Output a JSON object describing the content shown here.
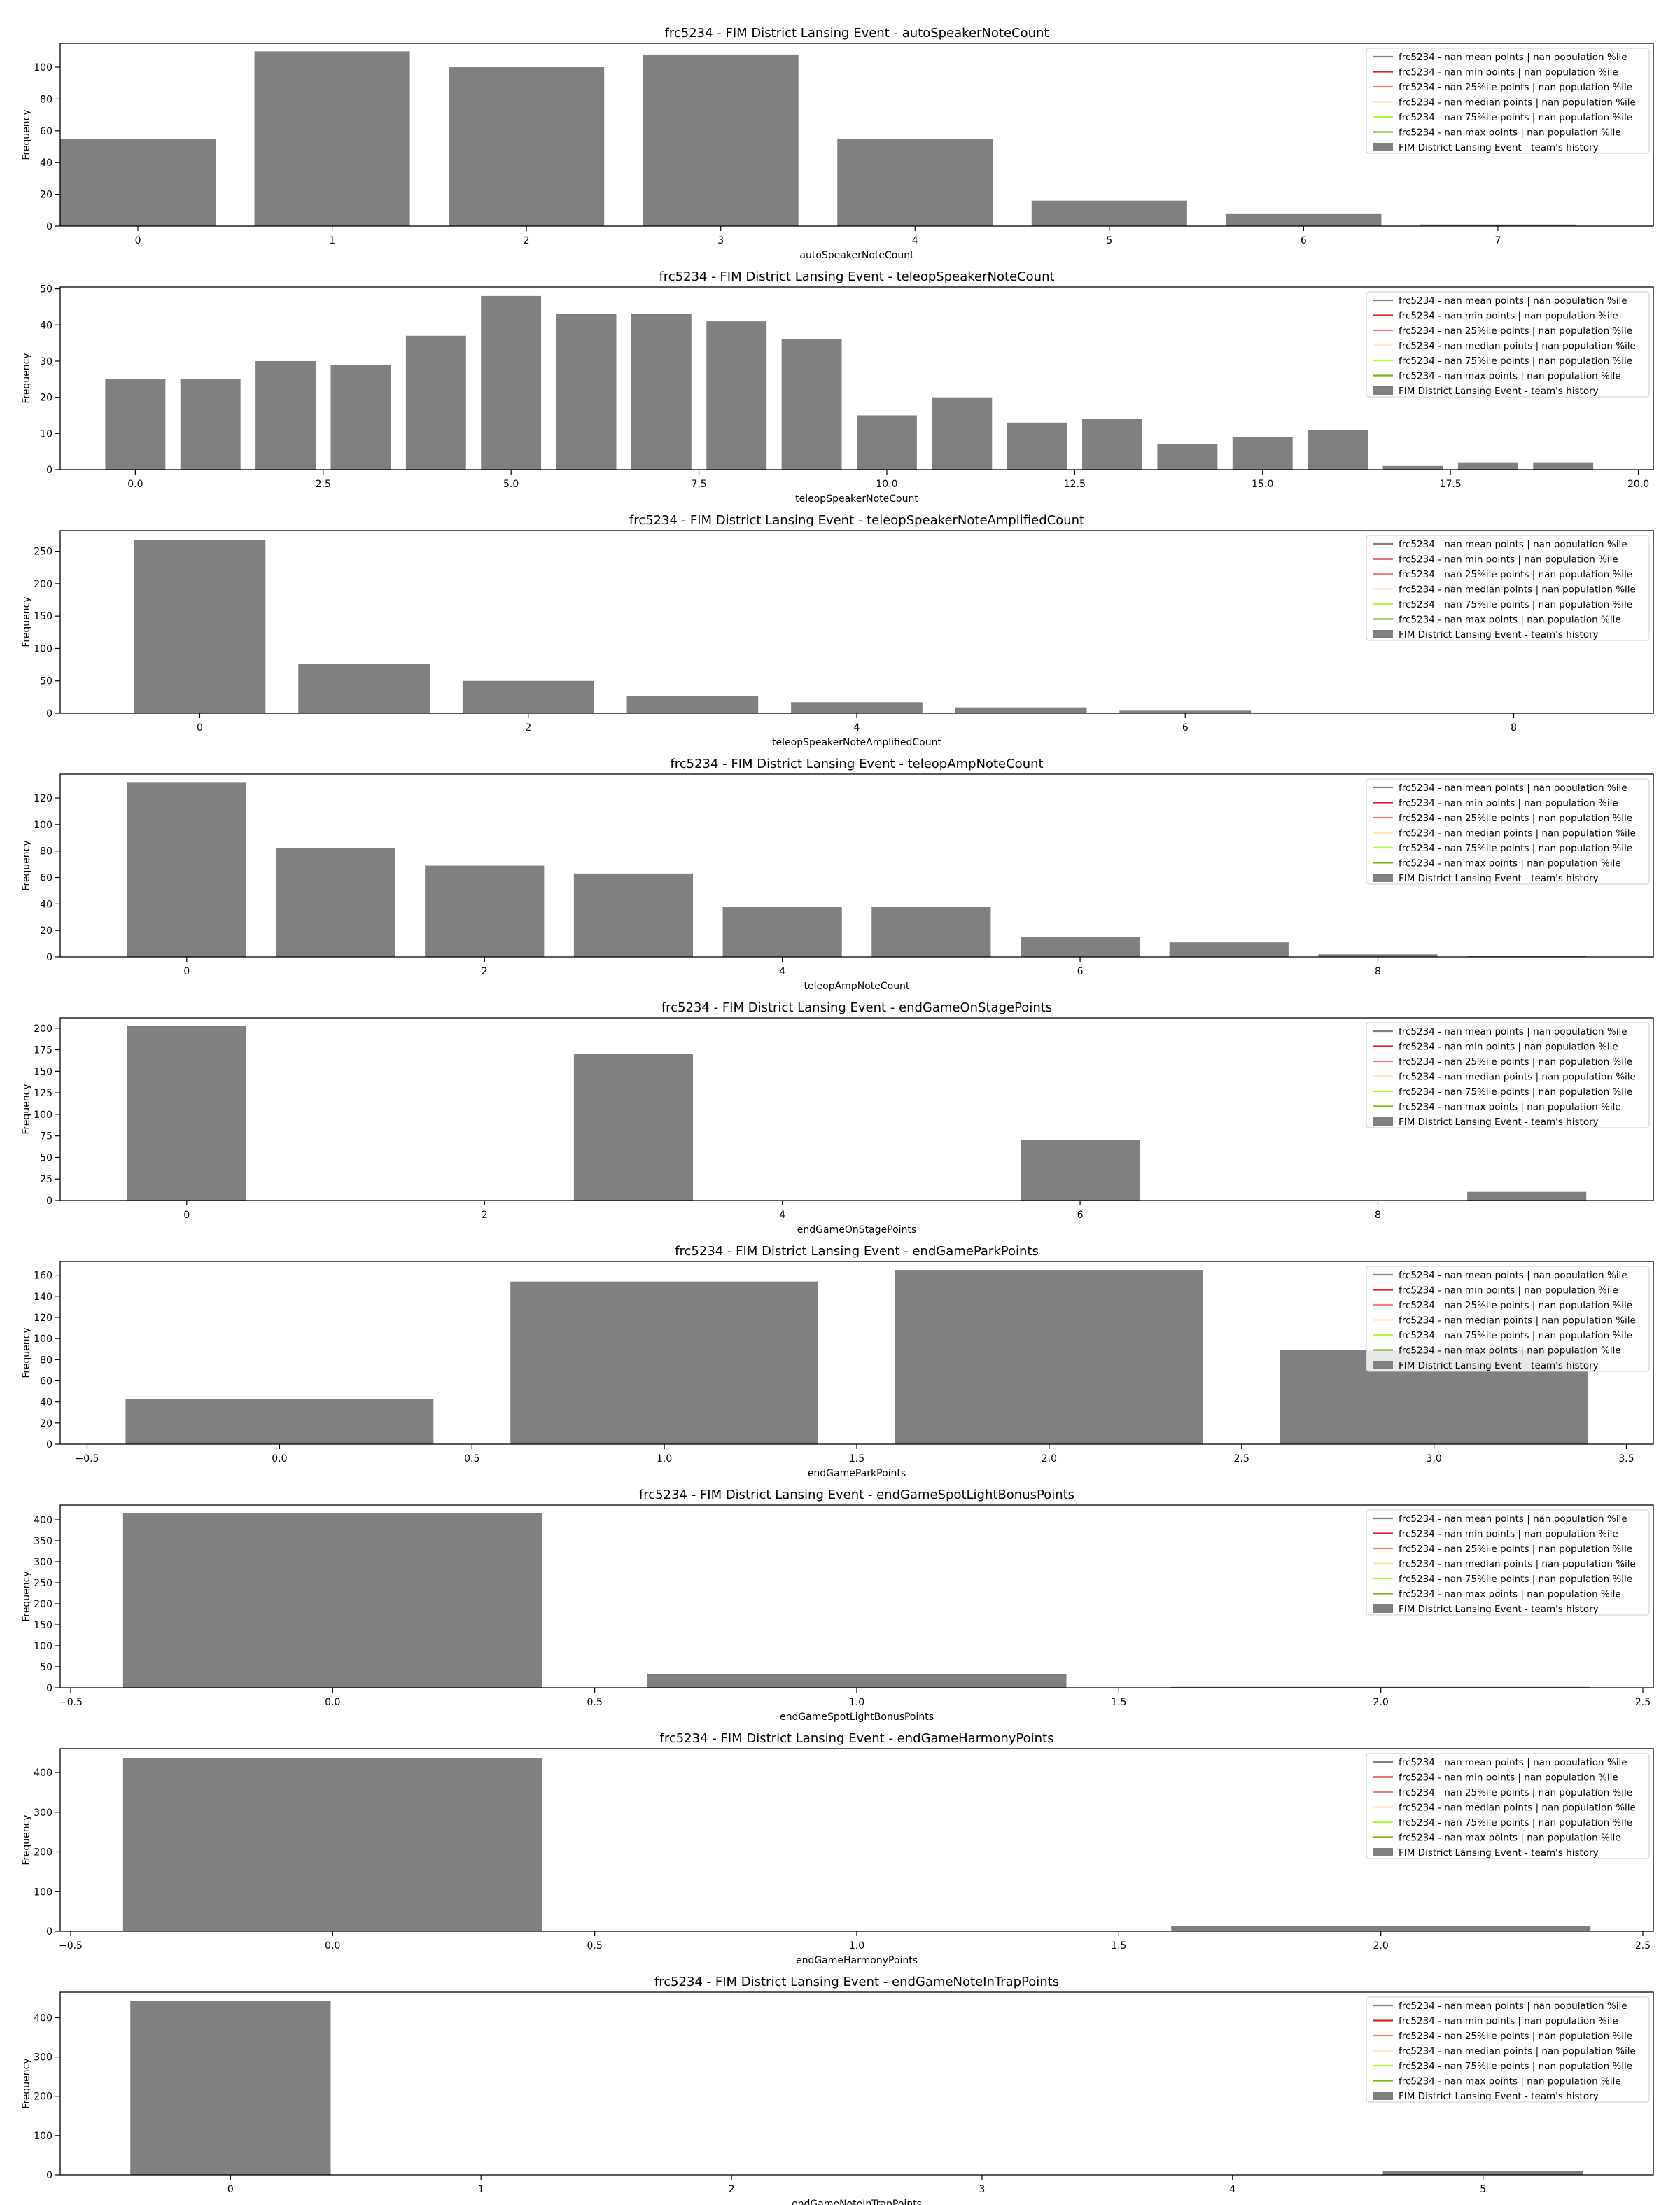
{
  "legend_entries": [
    {
      "label": "frc5234 - nan mean points | nan population %ile",
      "color": "#808080",
      "kind": "line"
    },
    {
      "label": "frc5234 - nan min points | nan population %ile",
      "color": "#d62728",
      "kind": "line"
    },
    {
      "label": "frc5234 - nan 25%ile points | nan population %ile",
      "color": "#f08080",
      "kind": "line"
    },
    {
      "label": "frc5234 - nan median points | nan population %ile",
      "color": "#ffe4b5",
      "kind": "line"
    },
    {
      "label": "frc5234 - nan 75%ile points | nan population %ile",
      "color": "#adff2f",
      "kind": "line"
    },
    {
      "label": "frc5234 - nan max points | nan population %ile",
      "color": "#7cb518",
      "kind": "line"
    },
    {
      "label": "FIM District Lansing Event - team's history",
      "color": "#808080",
      "kind": "bar"
    }
  ],
  "bar_color": "#808080",
  "chart_data": [
    {
      "type": "bar",
      "title": "frc5234 - FIM District Lansing Event - autoSpeakerNoteCount",
      "xlabel": "autoSpeakerNoteCount",
      "ylabel": "Frequency",
      "legend_position": "upper right",
      "grid": false,
      "xlim": [
        -0.4,
        7.8
      ],
      "ylim": [
        0,
        115
      ],
      "xticks": [
        {
          "v": 0,
          "label": "0"
        },
        {
          "v": 1,
          "label": "1"
        },
        {
          "v": 2,
          "label": "2"
        },
        {
          "v": 3,
          "label": "3"
        },
        {
          "v": 4,
          "label": "4"
        },
        {
          "v": 5,
          "label": "5"
        },
        {
          "v": 6,
          "label": "6"
        },
        {
          "v": 7,
          "label": "7"
        }
      ],
      "yticks": [
        {
          "v": 0,
          "label": "0"
        },
        {
          "v": 20,
          "label": "20"
        },
        {
          "v": 40,
          "label": "40"
        },
        {
          "v": 60,
          "label": "60"
        },
        {
          "v": 80,
          "label": "80"
        },
        {
          "v": 100,
          "label": "100"
        }
      ],
      "bars": [
        {
          "x0": -0.4,
          "x1": 0.4,
          "value": 55
        },
        {
          "x0": 0.6,
          "x1": 1.4,
          "value": 110
        },
        {
          "x0": 1.6,
          "x1": 2.4,
          "value": 100
        },
        {
          "x0": 2.6,
          "x1": 3.4,
          "value": 108
        },
        {
          "x0": 3.6,
          "x1": 4.4,
          "value": 55
        },
        {
          "x0": 4.6,
          "x1": 5.4,
          "value": 16
        },
        {
          "x0": 5.6,
          "x1": 6.4,
          "value": 8
        },
        {
          "x0": 6.6,
          "x1": 7.4,
          "value": 1
        }
      ]
    },
    {
      "type": "bar",
      "title": "frc5234 - FIM District Lansing Event - teleopSpeakerNoteCount",
      "xlabel": "teleopSpeakerNoteCount",
      "ylabel": "Frequency",
      "legend_position": "upper right",
      "grid": false,
      "xlim": [
        -1.0,
        20.2
      ],
      "ylim": [
        0,
        50.5
      ],
      "xticks": [
        {
          "v": 0,
          "label": "0.0"
        },
        {
          "v": 2.5,
          "label": "2.5"
        },
        {
          "v": 5,
          "label": "5.0"
        },
        {
          "v": 7.5,
          "label": "7.5"
        },
        {
          "v": 10,
          "label": "10.0"
        },
        {
          "v": 12.5,
          "label": "12.5"
        },
        {
          "v": 15,
          "label": "15.0"
        },
        {
          "v": 17.5,
          "label": "17.5"
        },
        {
          "v": 20,
          "label": "20.0"
        }
      ],
      "yticks": [
        {
          "v": 0,
          "label": "0"
        },
        {
          "v": 10,
          "label": "10"
        },
        {
          "v": 20,
          "label": "20"
        },
        {
          "v": 30,
          "label": "30"
        },
        {
          "v": 40,
          "label": "40"
        },
        {
          "v": 50,
          "label": "50"
        }
      ],
      "bars": [
        {
          "x0": -0.4,
          "x1": 0.4,
          "value": 25
        },
        {
          "x0": 0.6,
          "x1": 1.4,
          "value": 25
        },
        {
          "x0": 1.6,
          "x1": 2.4,
          "value": 30
        },
        {
          "x0": 2.6,
          "x1": 3.4,
          "value": 29
        },
        {
          "x0": 3.6,
          "x1": 4.4,
          "value": 37
        },
        {
          "x0": 4.6,
          "x1": 5.4,
          "value": 48
        },
        {
          "x0": 5.6,
          "x1": 6.4,
          "value": 43
        },
        {
          "x0": 6.6,
          "x1": 7.4,
          "value": 43
        },
        {
          "x0": 7.6,
          "x1": 8.4,
          "value": 41
        },
        {
          "x0": 8.6,
          "x1": 9.4,
          "value": 36
        },
        {
          "x0": 9.6,
          "x1": 10.4,
          "value": 15
        },
        {
          "x0": 10.6,
          "x1": 11.4,
          "value": 20
        },
        {
          "x0": 11.6,
          "x1": 12.4,
          "value": 13
        },
        {
          "x0": 12.6,
          "x1": 13.4,
          "value": 14
        },
        {
          "x0": 13.6,
          "x1": 14.4,
          "value": 7
        },
        {
          "x0": 14.6,
          "x1": 15.4,
          "value": 9
        },
        {
          "x0": 15.6,
          "x1": 16.4,
          "value": 11
        },
        {
          "x0": 16.6,
          "x1": 17.4,
          "value": 1
        },
        {
          "x0": 17.6,
          "x1": 18.4,
          "value": 2
        },
        {
          "x0": 18.6,
          "x1": 19.4,
          "value": 2
        }
      ]
    },
    {
      "type": "bar",
      "title": "frc5234 - FIM District Lansing Event - teleopSpeakerNoteAmplifiedCount",
      "xlabel": "teleopSpeakerNoteAmplifiedCount",
      "ylabel": "Frequency",
      "legend_position": "upper right",
      "grid": false,
      "xlim": [
        -0.85,
        8.85
      ],
      "ylim": [
        0,
        282
      ],
      "xticks": [
        {
          "v": 0,
          "label": "0"
        },
        {
          "v": 2,
          "label": "2"
        },
        {
          "v": 4,
          "label": "4"
        },
        {
          "v": 6,
          "label": "6"
        },
        {
          "v": 8,
          "label": "8"
        }
      ],
      "yticks": [
        {
          "v": 0,
          "label": "0"
        },
        {
          "v": 50,
          "label": "50"
        },
        {
          "v": 100,
          "label": "100"
        },
        {
          "v": 150,
          "label": "150"
        },
        {
          "v": 200,
          "label": "200"
        },
        {
          "v": 250,
          "label": "250"
        }
      ],
      "bars": [
        {
          "x0": -0.4,
          "x1": 0.4,
          "value": 268
        },
        {
          "x0": 0.6,
          "x1": 1.4,
          "value": 76
        },
        {
          "x0": 1.6,
          "x1": 2.4,
          "value": 50
        },
        {
          "x0": 2.6,
          "x1": 3.4,
          "value": 26
        },
        {
          "x0": 3.6,
          "x1": 4.4,
          "value": 17
        },
        {
          "x0": 4.6,
          "x1": 5.4,
          "value": 9
        },
        {
          "x0": 5.6,
          "x1": 6.4,
          "value": 4
        },
        {
          "x0": 6.6,
          "x1": 7.4,
          "value": 0
        },
        {
          "x0": 7.6,
          "x1": 8.4,
          "value": 1
        }
      ]
    },
    {
      "type": "bar",
      "title": "frc5234 - FIM District Lansing Event - teleopAmpNoteCount",
      "xlabel": "teleopAmpNoteCount",
      "ylabel": "Frequency",
      "legend_position": "upper right",
      "grid": false,
      "xlim": [
        -0.85,
        9.85
      ],
      "ylim": [
        0,
        138
      ],
      "xticks": [
        {
          "v": 0,
          "label": "0"
        },
        {
          "v": 2,
          "label": "2"
        },
        {
          "v": 4,
          "label": "4"
        },
        {
          "v": 6,
          "label": "6"
        },
        {
          "v": 8,
          "label": "8"
        }
      ],
      "yticks": [
        {
          "v": 0,
          "label": "0"
        },
        {
          "v": 20,
          "label": "20"
        },
        {
          "v": 40,
          "label": "40"
        },
        {
          "v": 60,
          "label": "60"
        },
        {
          "v": 80,
          "label": "80"
        },
        {
          "v": 100,
          "label": "100"
        },
        {
          "v": 120,
          "label": "120"
        }
      ],
      "bars": [
        {
          "x0": -0.4,
          "x1": 0.4,
          "value": 132
        },
        {
          "x0": 0.6,
          "x1": 1.4,
          "value": 82
        },
        {
          "x0": 1.6,
          "x1": 2.4,
          "value": 69
        },
        {
          "x0": 2.6,
          "x1": 3.4,
          "value": 63
        },
        {
          "x0": 3.6,
          "x1": 4.4,
          "value": 38
        },
        {
          "x0": 4.6,
          "x1": 5.4,
          "value": 38
        },
        {
          "x0": 5.6,
          "x1": 6.4,
          "value": 15
        },
        {
          "x0": 6.6,
          "x1": 7.4,
          "value": 11
        },
        {
          "x0": 7.6,
          "x1": 8.4,
          "value": 2
        },
        {
          "x0": 8.6,
          "x1": 9.4,
          "value": 1
        }
      ]
    },
    {
      "type": "bar",
      "title": "frc5234 - FIM District Lansing Event - endGameOnStagePoints",
      "xlabel": "endGameOnStagePoints",
      "ylabel": "Frequency",
      "legend_position": "upper right",
      "grid": false,
      "xlim": [
        -0.85,
        9.85
      ],
      "ylim": [
        0,
        212
      ],
      "xticks": [
        {
          "v": 0,
          "label": "0"
        },
        {
          "v": 2,
          "label": "2"
        },
        {
          "v": 4,
          "label": "4"
        },
        {
          "v": 6,
          "label": "6"
        },
        {
          "v": 8,
          "label": "8"
        }
      ],
      "yticks": [
        {
          "v": 0,
          "label": "0"
        },
        {
          "v": 25,
          "label": "25"
        },
        {
          "v": 50,
          "label": "50"
        },
        {
          "v": 75,
          "label": "75"
        },
        {
          "v": 100,
          "label": "100"
        },
        {
          "v": 125,
          "label": "125"
        },
        {
          "v": 150,
          "label": "150"
        },
        {
          "v": 175,
          "label": "175"
        },
        {
          "v": 200,
          "label": "200"
        }
      ],
      "bars": [
        {
          "x0": -0.4,
          "x1": 0.4,
          "value": 203
        },
        {
          "x0": 2.6,
          "x1": 3.4,
          "value": 170
        },
        {
          "x0": 5.6,
          "x1": 6.4,
          "value": 70
        },
        {
          "x0": 8.6,
          "x1": 9.4,
          "value": 10
        }
      ]
    },
    {
      "type": "bar",
      "title": "frc5234 - FIM District Lansing Event - endGameParkPoints",
      "xlabel": "endGameParkPoints",
      "ylabel": "Frequency",
      "legend_position": "upper right",
      "grid": false,
      "xlim": [
        -0.57,
        3.57
      ],
      "ylim": [
        0,
        173
      ],
      "xticks": [
        {
          "v": -0.5,
          "label": "−0.5"
        },
        {
          "v": 0,
          "label": "0.0"
        },
        {
          "v": 0.5,
          "label": "0.5"
        },
        {
          "v": 1,
          "label": "1.0"
        },
        {
          "v": 1.5,
          "label": "1.5"
        },
        {
          "v": 2,
          "label": "2.0"
        },
        {
          "v": 2.5,
          "label": "2.5"
        },
        {
          "v": 3,
          "label": "3.0"
        },
        {
          "v": 3.5,
          "label": "3.5"
        }
      ],
      "yticks": [
        {
          "v": 0,
          "label": "0"
        },
        {
          "v": 20,
          "label": "20"
        },
        {
          "v": 40,
          "label": "40"
        },
        {
          "v": 60,
          "label": "60"
        },
        {
          "v": 80,
          "label": "80"
        },
        {
          "v": 100,
          "label": "100"
        },
        {
          "v": 120,
          "label": "120"
        },
        {
          "v": 140,
          "label": "140"
        },
        {
          "v": 160,
          "label": "160"
        }
      ],
      "bars": [
        {
          "x0": -0.4,
          "x1": 0.4,
          "value": 43
        },
        {
          "x0": 0.6,
          "x1": 1.4,
          "value": 154
        },
        {
          "x0": 1.6,
          "x1": 2.4,
          "value": 165
        },
        {
          "x0": 2.6,
          "x1": 3.4,
          "value": 89
        }
      ]
    },
    {
      "type": "bar",
      "title": "frc5234 - FIM District Lansing Event - endGameSpotLightBonusPoints",
      "xlabel": "endGameSpotLightBonusPoints",
      "ylabel": "Frequency",
      "legend_position": "upper right",
      "grid": false,
      "xlim": [
        -0.52,
        2.52
      ],
      "ylim": [
        0,
        435
      ],
      "xticks": [
        {
          "v": -0.5,
          "label": "−0.5"
        },
        {
          "v": 0,
          "label": "0.0"
        },
        {
          "v": 0.5,
          "label": "0.5"
        },
        {
          "v": 1,
          "label": "1.0"
        },
        {
          "v": 1.5,
          "label": "1.5"
        },
        {
          "v": 2,
          "label": "2.0"
        },
        {
          "v": 2.5,
          "label": "2.5"
        }
      ],
      "yticks": [
        {
          "v": 0,
          "label": "0"
        },
        {
          "v": 50,
          "label": "50"
        },
        {
          "v": 100,
          "label": "100"
        },
        {
          "v": 150,
          "label": "150"
        },
        {
          "v": 200,
          "label": "200"
        },
        {
          "v": 250,
          "label": "250"
        },
        {
          "v": 300,
          "label": "300"
        },
        {
          "v": 350,
          "label": "350"
        },
        {
          "v": 400,
          "label": "400"
        }
      ],
      "bars": [
        {
          "x0": -0.4,
          "x1": 0.4,
          "value": 415
        },
        {
          "x0": 0.6,
          "x1": 1.4,
          "value": 33
        },
        {
          "x0": 1.6,
          "x1": 2.4,
          "value": 2
        }
      ]
    },
    {
      "type": "bar",
      "title": "frc5234 - FIM District Lansing Event - endGameHarmonyPoints",
      "xlabel": "endGameHarmonyPoints",
      "ylabel": "Frequency",
      "legend_position": "upper right",
      "grid": false,
      "xlim": [
        -0.52,
        2.52
      ],
      "ylim": [
        0,
        460
      ],
      "xticks": [
        {
          "v": -0.5,
          "label": "−0.5"
        },
        {
          "v": 0,
          "label": "0.0"
        },
        {
          "v": 0.5,
          "label": "0.5"
        },
        {
          "v": 1,
          "label": "1.0"
        },
        {
          "v": 1.5,
          "label": "1.5"
        },
        {
          "v": 2,
          "label": "2.0"
        },
        {
          "v": 2.5,
          "label": "2.5"
        }
      ],
      "yticks": [
        {
          "v": 0,
          "label": "0"
        },
        {
          "v": 100,
          "label": "100"
        },
        {
          "v": 200,
          "label": "200"
        },
        {
          "v": 300,
          "label": "300"
        },
        {
          "v": 400,
          "label": "400"
        }
      ],
      "bars": [
        {
          "x0": -0.4,
          "x1": 0.4,
          "value": 437
        },
        {
          "x0": 1.6,
          "x1": 2.4,
          "value": 13
        }
      ]
    },
    {
      "type": "bar",
      "title": "frc5234 - FIM District Lansing Event - endGameNoteInTrapPoints",
      "xlabel": "endGameNoteInTrapPoints",
      "ylabel": "Frequency",
      "legend_position": "upper right",
      "grid": false,
      "xlim": [
        -0.68,
        5.68
      ],
      "ylim": [
        0,
        465
      ],
      "xticks": [
        {
          "v": 0,
          "label": "0"
        },
        {
          "v": 1,
          "label": "1"
        },
        {
          "v": 2,
          "label": "2"
        },
        {
          "v": 3,
          "label": "3"
        },
        {
          "v": 4,
          "label": "4"
        },
        {
          "v": 5,
          "label": "5"
        }
      ],
      "yticks": [
        {
          "v": 0,
          "label": "0"
        },
        {
          "v": 100,
          "label": "100"
        },
        {
          "v": 200,
          "label": "200"
        },
        {
          "v": 300,
          "label": "300"
        },
        {
          "v": 400,
          "label": "400"
        }
      ],
      "bars": [
        {
          "x0": -0.4,
          "x1": 0.4,
          "value": 443
        },
        {
          "x0": 4.6,
          "x1": 5.4,
          "value": 9
        }
      ]
    }
  ]
}
